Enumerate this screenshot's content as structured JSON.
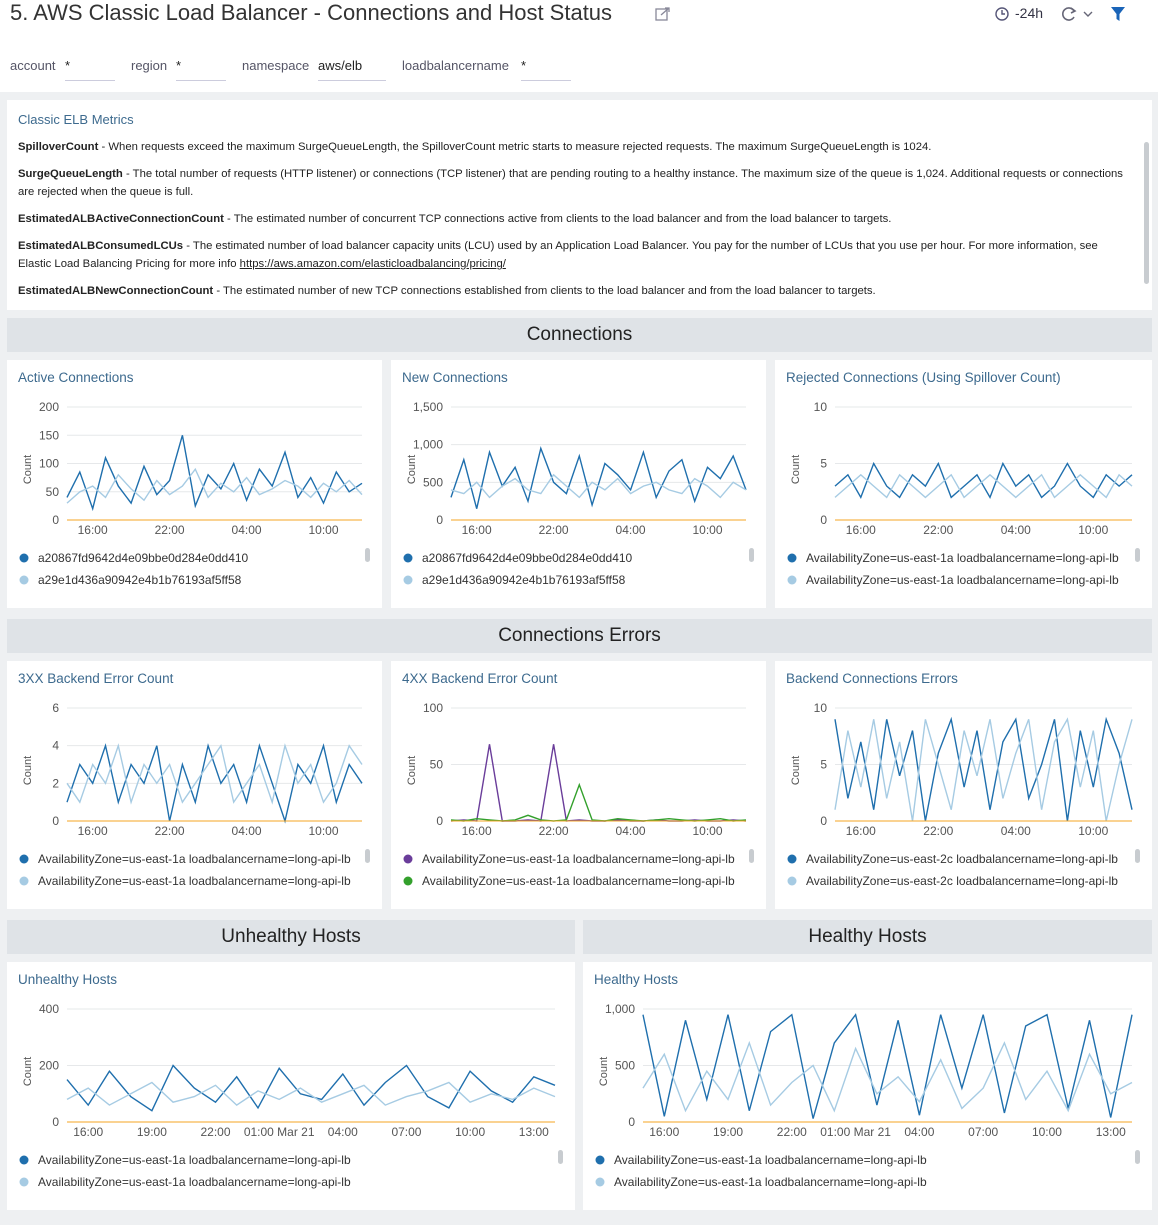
{
  "header": {
    "title": "5. AWS Classic Load Balancer - Connections and Host Status",
    "time_range": "-24h"
  },
  "filters": [
    {
      "label": "account",
      "value": "*"
    },
    {
      "label": "region",
      "value": "*"
    },
    {
      "label": "namespace",
      "value": "aws/elb"
    },
    {
      "label": "loadbalancername",
      "value": "*"
    }
  ],
  "info": {
    "title": "Classic ELB Metrics",
    "items": [
      {
        "term": "SpilloverCount",
        "text": " - When requests exceed the maximum SurgeQueueLength, the SpilloverCount metric starts to measure rejected requests. The maximum SurgeQueueLength is 1024."
      },
      {
        "term": "SurgeQueueLength",
        "text": " - The total number of requests (HTTP listener) or connections (TCP listener) that are pending routing to a healthy instance. The maximum size of the queue is 1,024. Additional requests or connections are rejected when the queue is full."
      },
      {
        "term": "EstimatedALBActiveConnectionCount",
        "text": " - The estimated number of concurrent TCP connections active from clients to the load balancer and from the load balancer to targets."
      },
      {
        "term": "EstimatedALBConsumedLCUs",
        "text": " - The estimated number of load balancer capacity units (LCU) used by an Application Load Balancer. You pay for the number of LCUs that you use per hour. For more information, see Elastic Load Balancing Pricing for more info ",
        "link": "https://aws.amazon.com/elasticloadbalancing/pricing/"
      },
      {
        "term": "EstimatedALBNewConnectionCount",
        "text": " - The estimated number of new TCP connections established from clients to the load balancer and from the load balancer to targets."
      }
    ]
  },
  "sections": [
    "Connections",
    "Connections Errors",
    "Unhealthy Hosts",
    "Healthy Hosts"
  ],
  "chart_data": [
    {
      "type": "line",
      "title": "Active Connections",
      "y_label": "Count",
      "categories": [
        null,
        null,
        "16:00",
        null,
        null,
        null,
        null,
        null,
        "22:00",
        null,
        null,
        null,
        null,
        null,
        "04:00",
        null,
        null,
        null,
        null,
        null,
        "10:00",
        null,
        null,
        null
      ],
      "ylim": [
        0,
        200
      ],
      "yticks": [
        0,
        50,
        100,
        150,
        200
      ],
      "series": [
        {
          "name": "a20867fd9642d4e09bbe0d284e0dd410",
          "color": "#1f6fad",
          "values": [
            40,
            85,
            20,
            110,
            60,
            30,
            95,
            45,
            70,
            150,
            25,
            80,
            55,
            100,
            35,
            90,
            60,
            120,
            40,
            75,
            30,
            85,
            50,
            65
          ]
        },
        {
          "name": "a29e1d436a90942e4b1b76193af5ff58",
          "color": "#a6cbe3",
          "values": [
            30,
            50,
            60,
            40,
            80,
            55,
            35,
            70,
            45,
            60,
            90,
            40,
            65,
            50,
            75,
            45,
            55,
            70,
            60,
            40,
            65,
            50,
            70,
            45
          ]
        }
      ]
    },
    {
      "type": "line",
      "title": "New Connections",
      "y_label": "Count",
      "categories": [
        null,
        null,
        "16:00",
        null,
        null,
        null,
        null,
        null,
        "22:00",
        null,
        null,
        null,
        null,
        null,
        "04:00",
        null,
        null,
        null,
        null,
        null,
        "10:00",
        null,
        null,
        null
      ],
      "ylim": [
        0,
        1500
      ],
      "yticks": [
        0,
        500,
        {
          "value": 1000,
          "label": "1,000"
        },
        {
          "value": 1500,
          "label": "1,500"
        }
      ],
      "series": [
        {
          "name": "a20867fd9642d4e09bbe0d284e0dd410",
          "color": "#1f6fad",
          "values": [
            300,
            800,
            150,
            900,
            450,
            700,
            250,
            950,
            500,
            350,
            850,
            200,
            750,
            600,
            400,
            900,
            300,
            650,
            800,
            250,
            700,
            550,
            850,
            400
          ]
        },
        {
          "name": "a29e1d436a90942e4b1b76193af5ff58",
          "color": "#a6cbe3",
          "values": [
            400,
            350,
            500,
            300,
            450,
            550,
            400,
            350,
            600,
            450,
            300,
            500,
            400,
            550,
            350,
            450,
            500,
            400,
            350,
            550,
            450,
            300,
            500,
            400
          ]
        }
      ]
    },
    {
      "type": "line",
      "title": "Rejected Connections (Using Spillover Count)",
      "y_label": "Count",
      "categories": [
        null,
        null,
        "16:00",
        null,
        null,
        null,
        null,
        null,
        "22:00",
        null,
        null,
        null,
        null,
        null,
        "04:00",
        null,
        null,
        null,
        null,
        null,
        "10:00",
        null,
        null,
        null
      ],
      "ylim": [
        0,
        10
      ],
      "yticks": [
        0,
        5,
        10
      ],
      "series": [
        {
          "name": "AvailabilityZone=us-east-1a loadbalancername=long-api-lb",
          "color": "#1f6fad",
          "values": [
            3,
            4,
            2,
            5,
            3,
            2,
            4,
            3,
            5,
            2,
            3,
            4,
            2,
            5,
            3,
            4,
            2,
            3,
            5,
            3,
            2,
            4,
            3,
            4
          ]
        },
        {
          "name": "AvailabilityZone=us-east-1a loadbalancername=long-api-lb",
          "color": "#a6cbe3",
          "values": [
            2,
            3,
            4,
            3,
            2,
            4,
            3,
            2,
            3,
            4,
            2,
            3,
            4,
            3,
            2,
            3,
            4,
            2,
            3,
            4,
            3,
            2,
            4,
            3
          ]
        }
      ]
    },
    {
      "type": "line",
      "title": "3XX Backend Error Count",
      "y_label": "Count",
      "categories": [
        null,
        null,
        "16:00",
        null,
        null,
        null,
        null,
        null,
        "22:00",
        null,
        null,
        null,
        null,
        null,
        "04:00",
        null,
        null,
        null,
        null,
        null,
        "10:00",
        null,
        null,
        null
      ],
      "ylim": [
        0,
        6
      ],
      "yticks": [
        0,
        2,
        4,
        6
      ],
      "series": [
        {
          "name": "AvailabilityZone=us-east-1a loadbalancername=long-api-lb",
          "color": "#1f6fad",
          "values": [
            1,
            3,
            2,
            4,
            1,
            3,
            2,
            4,
            0,
            3,
            1,
            4,
            2,
            3,
            1,
            4,
            2,
            0,
            3,
            2,
            4,
            1,
            3,
            2
          ]
        },
        {
          "name": "AvailabilityZone=us-east-1a loadbalancername=long-api-lb",
          "color": "#a6cbe3",
          "values": [
            2,
            1,
            3,
            2,
            4,
            1,
            3,
            2,
            3,
            1,
            2,
            3,
            4,
            1,
            2,
            3,
            1,
            4,
            2,
            3,
            1,
            2,
            4,
            3
          ]
        }
      ]
    },
    {
      "type": "line",
      "title": "4XX Backend Error Count",
      "y_label": "Count",
      "categories": [
        null,
        null,
        "16:00",
        null,
        null,
        null,
        null,
        null,
        "22:00",
        null,
        null,
        null,
        null,
        null,
        "04:00",
        null,
        null,
        null,
        null,
        null,
        "10:00",
        null,
        null,
        null
      ],
      "ylim": [
        0,
        100
      ],
      "yticks": [
        0,
        50,
        100
      ],
      "series": [
        {
          "name": "AvailabilityZone=us-east-1a loadbalancername=long-api-lb",
          "color": "#6a3d9a",
          "values": [
            0,
            1,
            0,
            68,
            0,
            0,
            1,
            0,
            68,
            0,
            1,
            0,
            0,
            1,
            0,
            0,
            1,
            0,
            0,
            1,
            0,
            0,
            1,
            0
          ]
        },
        {
          "name": "AvailabilityZone=us-east-1a loadbalancername=long-api-lb",
          "color": "#33a02c",
          "values": [
            1,
            0,
            2,
            1,
            0,
            1,
            5,
            1,
            0,
            1,
            32,
            1,
            0,
            2,
            1,
            0,
            1,
            2,
            1,
            0,
            1,
            2,
            0,
            1
          ]
        }
      ]
    },
    {
      "type": "line",
      "title": "Backend Connections Errors",
      "y_label": "Count",
      "categories": [
        null,
        null,
        "16:00",
        null,
        null,
        null,
        null,
        null,
        "22:00",
        null,
        null,
        null,
        null,
        null,
        "04:00",
        null,
        null,
        null,
        null,
        null,
        "10:00",
        null,
        null,
        null
      ],
      "ylim": [
        0,
        10
      ],
      "yticks": [
        0,
        5,
        10
      ],
      "series": [
        {
          "name": "AvailabilityZone=us-east-2c loadbalancername=long-api-lb",
          "color": "#1f6fad",
          "values": [
            9,
            2,
            7,
            1,
            9,
            4,
            8,
            0,
            6,
            9,
            3,
            8,
            1,
            7,
            9,
            2,
            5,
            9,
            0,
            8,
            3,
            9,
            6,
            1
          ]
        },
        {
          "name": "AvailabilityZone=us-east-2c loadbalancername=long-api-lb",
          "color": "#a6cbe3",
          "values": [
            1,
            8,
            3,
            9,
            2,
            7,
            0,
            9,
            5,
            1,
            8,
            4,
            9,
            2,
            6,
            9,
            1,
            7,
            9,
            3,
            8,
            0,
            5,
            9
          ]
        }
      ]
    },
    {
      "type": "line",
      "title": "Unhealthy Hosts",
      "y_label": "Count",
      "categories": [
        null,
        "16:00",
        null,
        null,
        "19:00",
        null,
        null,
        "22:00",
        null,
        null,
        "01:00 Mar 21",
        null,
        null,
        "04:00",
        null,
        null,
        "07:00",
        null,
        null,
        "10:00",
        null,
        null,
        "13:00",
        null
      ],
      "ylim": [
        0,
        400
      ],
      "yticks": [
        0,
        200,
        400
      ],
      "series": [
        {
          "name": "AvailabilityZone=us-east-1a loadbalancername=long-api-lb",
          "color": "#1f6fad",
          "values": [
            150,
            60,
            180,
            90,
            40,
            200,
            120,
            70,
            160,
            50,
            190,
            100,
            80,
            170,
            60,
            140,
            200,
            90,
            50,
            180,
            110,
            70,
            160,
            130
          ]
        },
        {
          "name": "AvailabilityZone=us-east-1a loadbalancername=long-api-lb",
          "color": "#a6cbe3",
          "values": [
            80,
            120,
            60,
            100,
            140,
            70,
            90,
            130,
            60,
            110,
            80,
            120,
            70,
            100,
            130,
            60,
            90,
            110,
            140,
            70,
            100,
            80,
            120,
            90
          ]
        }
      ]
    },
    {
      "type": "line",
      "title": "Healthy Hosts",
      "y_label": "Count",
      "categories": [
        null,
        "16:00",
        null,
        null,
        "19:00",
        null,
        null,
        "22:00",
        null,
        null,
        "01:00 Mar 21",
        null,
        null,
        "04:00",
        null,
        null,
        "07:00",
        null,
        null,
        "10:00",
        null,
        null,
        "13:00",
        null
      ],
      "ylim": [
        0,
        1000
      ],
      "yticks": [
        0,
        500,
        {
          "value": 1000,
          "label": "1,000"
        }
      ],
      "series": [
        {
          "name": "AvailabilityZone=us-east-1a loadbalancername=long-api-lb",
          "color": "#1f6fad",
          "values": [
            950,
            50,
            900,
            200,
            950,
            100,
            800,
            950,
            30,
            700,
            950,
            150,
            900,
            60,
            950,
            300,
            950,
            80,
            850,
            950,
            120,
            900,
            40,
            950
          ]
        },
        {
          "name": "AvailabilityZone=us-east-1a loadbalancername=long-api-lb",
          "color": "#a6cbe3",
          "values": [
            300,
            600,
            100,
            450,
            200,
            700,
            150,
            350,
            500,
            100,
            650,
            250,
            400,
            180,
            550,
            120,
            300,
            700,
            200,
            450,
            100,
            600,
            250,
            350
          ]
        }
      ]
    }
  ]
}
